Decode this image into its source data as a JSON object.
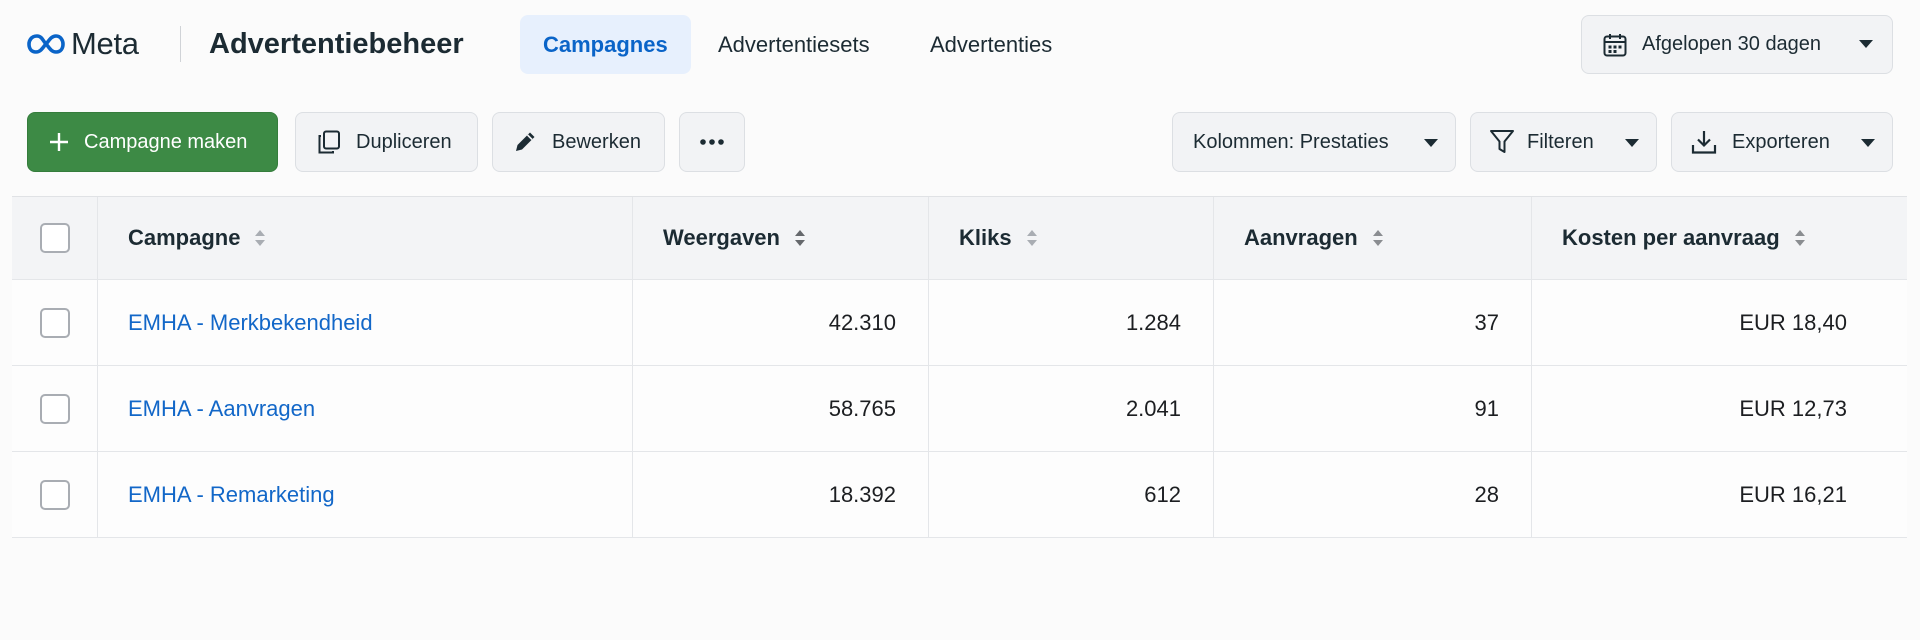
{
  "header": {
    "logo_text": "Meta",
    "app_title": "Advertentiebeheer",
    "tabs": [
      {
        "label": "Campagnes",
        "active": true
      },
      {
        "label": "Advertentiesets",
        "active": false
      },
      {
        "label": "Advertenties",
        "active": false
      }
    ],
    "date_range": "Afgelopen 30 dagen"
  },
  "toolbar": {
    "create_label": "Campagne maken",
    "duplicate_label": "Dupliceren",
    "edit_label": "Bewerken",
    "columns_label": "Kolommen: Prestaties",
    "filter_label": "Filteren",
    "export_label": "Exporteren"
  },
  "table": {
    "columns": [
      "Campagne",
      "Weergaven",
      "Kliks",
      "Aanvragen",
      "Kosten per aanvraag"
    ],
    "rows": [
      {
        "name": "EMHA - Merkbekendheid",
        "impressions": "42.310",
        "clicks": "1.284",
        "requests": "37",
        "cost": "EUR 18,40"
      },
      {
        "name": "EMHA - Aanvragen",
        "impressions": "58.765",
        "clicks": "2.041",
        "requests": "91",
        "cost": "EUR 12,73"
      },
      {
        "name": "EMHA - Remarketing",
        "impressions": "18.392",
        "clicks": "612",
        "requests": "28",
        "cost": "EUR 16,21"
      }
    ]
  },
  "colors": {
    "brand_blue": "#0a64c8",
    "link_blue": "#1267c8",
    "primary_green": "#3d8a45",
    "active_tab_bg": "#e7f0fd"
  },
  "icons": [
    "meta-infinity-icon",
    "calendar-icon",
    "plus-icon",
    "duplicate-icon",
    "pencil-icon",
    "more-icon",
    "filter-icon",
    "download-icon",
    "caret-down-icon",
    "sort-icon"
  ]
}
